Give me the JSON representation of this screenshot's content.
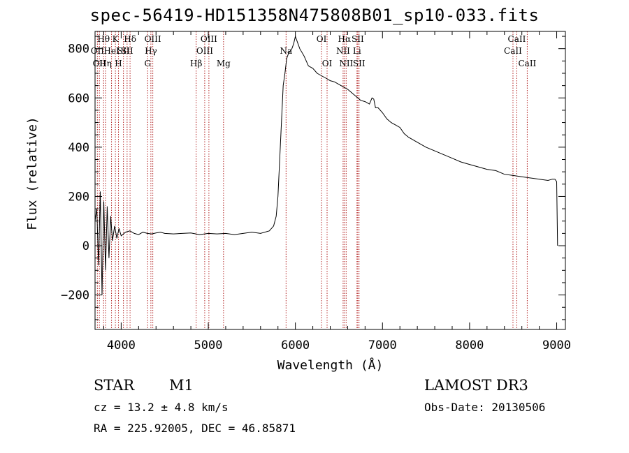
{
  "header": {
    "title": "spec-56419-HD151358N475808B01_sp10-033.fits"
  },
  "info": {
    "class": "STAR",
    "subclass": "M1",
    "survey": "LAMOST DR3",
    "cz": "cz = 13.2 ± 4.8 km/s",
    "obs_date": "Obs-Date: 20130506",
    "radec": "RA = 225.92005, DEC =  46.85871"
  },
  "chart_data": {
    "type": "line",
    "title": "spec-56419-HD151358N475808B01_sp10-033.fits",
    "xlabel": "Wavelength (Å)",
    "ylabel": "Flux (relative)",
    "xlim": [
      3700,
      9100
    ],
    "ylim": [
      -340,
      870
    ],
    "grid": false,
    "line_color": "#000000",
    "marker_color": "#b22222",
    "xticks": [
      4000,
      5000,
      6000,
      7000,
      8000,
      9000
    ],
    "yticks": [
      -200,
      0,
      200,
      400,
      600,
      800
    ],
    "series": [
      {
        "x": [
          3700,
          3720,
          3740,
          3760,
          3780,
          3800,
          3820,
          3840,
          3860,
          3880,
          3900,
          3925,
          3950,
          3975,
          4000,
          4050,
          4100,
          4150,
          4200,
          4250,
          4300,
          4350,
          4400,
          4450,
          4500,
          4600,
          4700,
          4800,
          4900,
          5000,
          5100,
          5200,
          5300,
          5400,
          5500,
          5600,
          5700,
          5750,
          5780,
          5800,
          5820,
          5840,
          5860,
          5880,
          5900,
          5920,
          5940,
          5960,
          5980,
          6000,
          6020,
          6050,
          6100,
          6150,
          6200,
          6250,
          6300,
          6350,
          6400,
          6450,
          6500,
          6550,
          6600,
          6650,
          6700,
          6750,
          6800,
          6850,
          6880,
          6900,
          6920,
          6950,
          7000,
          7050,
          7100,
          7150,
          7200,
          7250,
          7300,
          7400,
          7500,
          7600,
          7700,
          7800,
          7900,
          8000,
          8100,
          8200,
          8300,
          8400,
          8500,
          8600,
          8700,
          8800,
          8900,
          8950,
          8980,
          9000,
          9010
        ],
        "y": [
          100,
          150,
          -80,
          220,
          -200,
          180,
          -100,
          160,
          -50,
          120,
          20,
          80,
          30,
          70,
          40,
          55,
          60,
          50,
          45,
          55,
          50,
          48,
          52,
          55,
          50,
          48,
          50,
          52,
          45,
          50,
          48,
          50,
          45,
          50,
          55,
          50,
          60,
          80,
          120,
          200,
          350,
          500,
          650,
          700,
          760,
          780,
          790,
          800,
          820,
          850,
          830,
          800,
          770,
          730,
          720,
          700,
          690,
          680,
          670,
          665,
          655,
          645,
          635,
          620,
          605,
          590,
          585,
          575,
          600,
          595,
          560,
          560,
          540,
          515,
          500,
          490,
          480,
          455,
          440,
          420,
          400,
          385,
          370,
          355,
          340,
          330,
          320,
          310,
          305,
          290,
          285,
          280,
          275,
          270,
          265,
          270,
          270,
          260,
          0
        ]
      }
    ],
    "line_markers": [
      {
        "wavelength": 3727,
        "label": "OII",
        "row": 1
      },
      {
        "wavelength": 3750,
        "label": "OII",
        "row": 2
      },
      {
        "wavelength": 3798,
        "label": "Hθ",
        "row": 0
      },
      {
        "wavelength": 3820,
        "label": "Hη",
        "row": 2
      },
      {
        "wavelength": 3889,
        "label": "HeI",
        "row": 1
      },
      {
        "wavelength": 3934,
        "label": "K",
        "row": 0
      },
      {
        "wavelength": 3969,
        "label": "H",
        "row": 2
      },
      {
        "wavelength": 4026,
        "label": "SII",
        "row": 1
      },
      {
        "wavelength": 4102,
        "label": "Hδ",
        "row": 0
      },
      {
        "wavelength": 4068,
        "label": "SII",
        "row": 1
      },
      {
        "wavelength": 4304,
        "label": "G",
        "row": 2
      },
      {
        "wavelength": 4341,
        "label": "Hγ",
        "row": 1
      },
      {
        "wavelength": 4363,
        "label": "OIII",
        "row": 0
      },
      {
        "wavelength": 4861,
        "label": "Hβ",
        "row": 2
      },
      {
        "wavelength": 4959,
        "label": "OIII",
        "row": 1
      },
      {
        "wavelength": 5007,
        "label": "OIII",
        "row": 0
      },
      {
        "wavelength": 5175,
        "label": "Mg",
        "row": 2
      },
      {
        "wavelength": 5893,
        "label": "Na",
        "row": 1
      },
      {
        "wavelength": 6300,
        "label": "OI",
        "row": 0
      },
      {
        "wavelength": 6364,
        "label": "OI",
        "row": 2
      },
      {
        "wavelength": 6548,
        "label": "NII",
        "row": 1
      },
      {
        "wavelength": 6563,
        "label": "Hα",
        "row": 0
      },
      {
        "wavelength": 6583,
        "label": "NII",
        "row": 2
      },
      {
        "wavelength": 6707,
        "label": "Li",
        "row": 1
      },
      {
        "wavelength": 6716,
        "label": "SII",
        "row": 0
      },
      {
        "wavelength": 6731,
        "label": "SII",
        "row": 2
      },
      {
        "wavelength": 8498,
        "label": "CaII",
        "row": 1
      },
      {
        "wavelength": 8542,
        "label": "CaII",
        "row": 0
      },
      {
        "wavelength": 8662,
        "label": "CaII",
        "row": 2
      }
    ]
  }
}
